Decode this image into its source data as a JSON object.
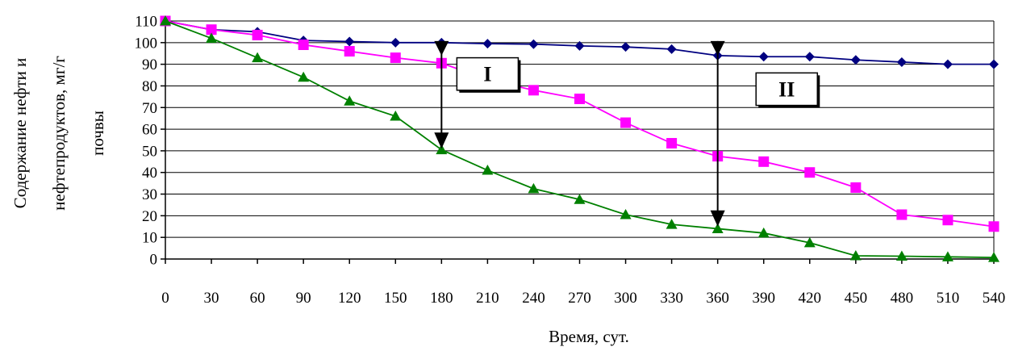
{
  "chart_data": {
    "type": "line",
    "title": "",
    "xlabel": "Время, сут.",
    "ylabel": [
      "Содержание нефти и",
      "нефтепродуктов, мг/г",
      "почвы"
    ],
    "xlim": [
      0,
      540
    ],
    "ylim": [
      0,
      110
    ],
    "x_ticks": [
      0,
      30,
      60,
      90,
      120,
      150,
      180,
      210,
      240,
      270,
      300,
      330,
      360,
      390,
      420,
      450,
      480,
      510,
      540
    ],
    "y_ticks": [
      0,
      10,
      20,
      30,
      40,
      50,
      60,
      70,
      80,
      90,
      100,
      110
    ],
    "grid": "horizontal",
    "legend": "none",
    "x": [
      0,
      30,
      60,
      90,
      120,
      150,
      180,
      210,
      240,
      270,
      300,
      330,
      360,
      390,
      420,
      450,
      480,
      510,
      540
    ],
    "series": [
      {
        "marker": "diamond",
        "color": "#000080",
        "values": [
          110,
          106,
          105,
          101,
          100.5,
          100,
          100,
          99.5,
          99.3,
          98.5,
          98,
          97,
          94,
          93.5,
          93.5,
          92,
          91,
          90,
          90
        ]
      },
      {
        "marker": "square",
        "color": "#ff00ff",
        "values": [
          110,
          106,
          103.5,
          99,
          96,
          93,
          90.5,
          83,
          78,
          74,
          63,
          53.5,
          47.5,
          45,
          40,
          33,
          20.5,
          18,
          15
        ]
      },
      {
        "marker": "triangle",
        "color": "#008000",
        "values": [
          110,
          102,
          93,
          84,
          73,
          66,
          50.5,
          41,
          32.5,
          27.5,
          20.5,
          16,
          14,
          12,
          7.5,
          1.5,
          1.3,
          1,
          0.7
        ]
      }
    ],
    "annotations": [
      {
        "label": "I",
        "x": 180,
        "arrow_from": 97,
        "arrow_to": 51,
        "box_x": [
          190,
          230
        ],
        "box_y": [
          78,
          93
        ]
      },
      {
        "label": "II",
        "x": 360,
        "arrow_from": 97,
        "arrow_to": 15,
        "box_x": [
          385,
          425
        ],
        "box_y": [
          71,
          86
        ]
      }
    ]
  }
}
